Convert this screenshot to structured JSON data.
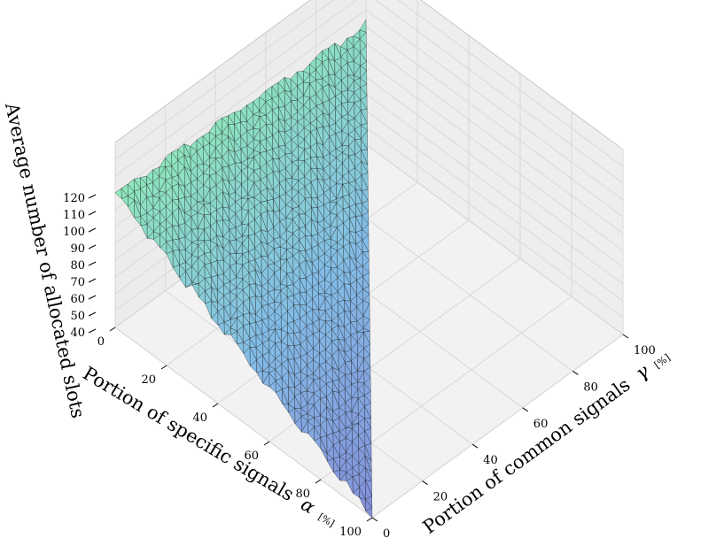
{
  "chart_data": {
    "type": "surface",
    "title": "",
    "xlabel": "Portion of specific signals",
    "xlabel_symbol": "α",
    "xlabel_unit": "[%]",
    "ylabel": "Portion of common signals",
    "ylabel_symbol": "γ",
    "ylabel_unit": "[%]",
    "zlabel": "Average number of allocated slots",
    "x_ticks": [
      "0",
      "20",
      "40",
      "60",
      "80",
      "100"
    ],
    "y_ticks": [
      "0",
      "20",
      "40",
      "60",
      "80",
      "100"
    ],
    "z_ticks": [
      "40",
      "50",
      "60",
      "70",
      "80",
      "90",
      "100",
      "110",
      "120"
    ],
    "xlim": [
      0,
      100
    ],
    "ylim": [
      0,
      100
    ],
    "zlim": [
      40,
      120
    ],
    "grid": true,
    "colormap": "cool-green-to-blue",
    "domain": "alpha + gamma <= 100",
    "series": [
      {
        "points": [
          {
            "alpha": 0,
            "gamma": 0,
            "slots": 120
          },
          {
            "alpha": 0,
            "gamma": 100,
            "slots": 111
          },
          {
            "alpha": 100,
            "gamma": 0,
            "slots": 40
          },
          {
            "alpha": 50,
            "gamma": 0,
            "slots": 80
          },
          {
            "alpha": 0,
            "gamma": 50,
            "slots": 115
          },
          {
            "alpha": 50,
            "gamma": 50,
            "slots": 76
          }
        ]
      }
    ],
    "colors": {
      "low": "#7a86d8",
      "mid": "#7ab8e6",
      "high": "#86e6b8",
      "mesh": "#222222",
      "pane": "#f2f2f2",
      "grid": "#d8d8d8"
    }
  }
}
